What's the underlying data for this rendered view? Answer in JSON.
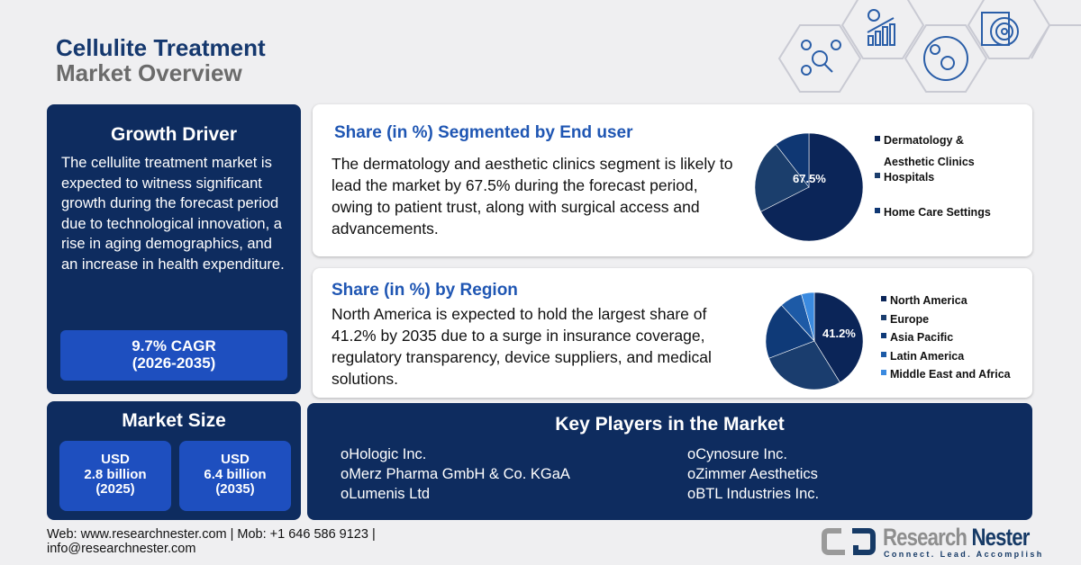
{
  "header": {
    "title_line1": "Cellulite Treatment",
    "title_line2": "Market Overview"
  },
  "growth_driver": {
    "heading": "Growth Driver",
    "text": "The cellulite treatment market is expected to witness significant growth during the forecast period due to technological innovation, a rise in aging demographics, and an increase in health expenditure.",
    "cagr": "9.7% CAGR",
    "cagr_period": "(2026-2035)"
  },
  "market_size": {
    "heading": "Market Size",
    "items": [
      {
        "currency": "USD",
        "value": "2.8 billion",
        "year": "(2025)"
      },
      {
        "currency": "USD",
        "value": "6.4 billion",
        "year": "(2035)"
      }
    ]
  },
  "end_user": {
    "heading": "Share (in %) Segmented by End user",
    "text": "The dermatology and aesthetic clinics segment is likely to lead the market by 67.5% during the forecast period, owing to patient trust, along with surgical access and advancements.",
    "label": "67.5%",
    "legend": [
      "Dermatology &",
      "Aesthetic Clinics",
      "Hospitals",
      "Home Care Settings"
    ]
  },
  "region": {
    "heading": "Share (in %) by Region",
    "text": "North America is expected to hold the largest share of 41.2% by 2035 due to a surge in insurance coverage, regulatory transparency, device suppliers, and medical solutions.",
    "label": "41.2%",
    "legend": [
      "North America",
      "Europe",
      "Asia Pacific",
      "Latin America",
      "Middle East and Africa"
    ]
  },
  "key_players": {
    "heading": "Key Players in the Market",
    "col1": [
      "Hologic Inc.",
      "Merz Pharma GmbH & Co. KGaA",
      "Lumenis Ltd"
    ],
    "col2": [
      "Cynosure Inc.",
      "Zimmer Aesthetics",
      "BTL Industries Inc."
    ]
  },
  "footer": {
    "line1": "Web: www.researchnester.com | Mob: +1 646 586 9123 |",
    "line2": "info@researchnester.com",
    "logo_name1": "Research",
    "logo_name2": "Nester",
    "logo_tagline": "Connect. Lead. Accomplish"
  },
  "chart_data": [
    {
      "type": "pie",
      "categories": [
        "Dermatology & Aesthetic Clinics",
        "Hospitals",
        "Home Care Settings"
      ],
      "values": [
        67.5,
        22,
        10.5
      ],
      "colors": [
        "#0b2558",
        "#1b3e6c",
        "#0f3773"
      ]
    },
    {
      "type": "pie",
      "categories": [
        "North America",
        "Europe",
        "Asia Pacific",
        "Latin America",
        "Middle East and Africa"
      ],
      "values": [
        41.2,
        28,
        19,
        7.5,
        4.3
      ],
      "colors": [
        "#0b2558",
        "#1a3d6e",
        "#0f3a78",
        "#1d5aa6",
        "#3a8ae0"
      ]
    }
  ]
}
